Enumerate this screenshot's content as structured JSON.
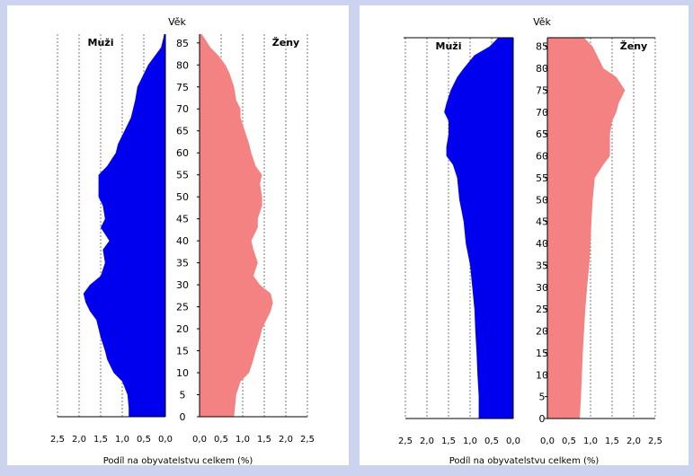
{
  "colors": {
    "men": "#0000ee",
    "women": "#f48282",
    "background": "#ccd3ee",
    "panel": "#ffffff"
  },
  "chart_data": [
    {
      "type": "population-pyramid",
      "age_label": "Věk",
      "xlabel": "Podíl na obyvatelstvu celkem (%)",
      "age_ticks": [
        0,
        5,
        10,
        15,
        20,
        25,
        30,
        35,
        40,
        45,
        50,
        55,
        60,
        65,
        70,
        75,
        80,
        85
      ],
      "x_ticks_left": [
        "2,5",
        "2,0",
        "1,5",
        "1,0",
        "0,5",
        "0,0"
      ],
      "x_ticks_right": [
        "0,0",
        "0,5",
        "1,0",
        "1,5",
        "2,0",
        "2,5"
      ],
      "xlim": [
        0,
        2.5
      ],
      "ylim": [
        0,
        87
      ],
      "grid": true,
      "series": [
        {
          "name": "Muži",
          "ages": [
            0,
            2,
            5,
            8,
            10,
            13,
            15,
            18,
            20,
            22,
            24,
            26,
            28,
            30,
            32,
            35,
            38,
            40,
            43,
            45,
            48,
            50,
            53,
            55,
            57,
            60,
            62,
            65,
            68,
            70,
            72,
            75,
            78,
            80,
            82,
            84,
            86,
            87
          ],
          "values": [
            0.85,
            0.85,
            0.88,
            1.0,
            1.2,
            1.35,
            1.4,
            1.5,
            1.55,
            1.6,
            1.75,
            1.85,
            1.9,
            1.75,
            1.5,
            1.4,
            1.45,
            1.3,
            1.5,
            1.4,
            1.45,
            1.55,
            1.55,
            1.55,
            1.35,
            1.15,
            1.1,
            0.95,
            0.8,
            0.75,
            0.7,
            0.65,
            0.5,
            0.4,
            0.25,
            0.1,
            0.05,
            0.03
          ]
        },
        {
          "name": "Ženy",
          "ages": [
            0,
            2,
            5,
            8,
            10,
            13,
            15,
            18,
            20,
            22,
            24,
            26,
            28,
            30,
            32,
            35,
            38,
            40,
            43,
            45,
            48,
            50,
            53,
            55,
            57,
            60,
            62,
            65,
            68,
            70,
            72,
            75,
            78,
            80,
            82,
            84,
            86,
            87
          ],
          "values": [
            0.8,
            0.82,
            0.85,
            0.95,
            1.15,
            1.25,
            1.3,
            1.4,
            1.45,
            1.55,
            1.65,
            1.7,
            1.65,
            1.4,
            1.25,
            1.35,
            1.25,
            1.2,
            1.35,
            1.35,
            1.45,
            1.45,
            1.4,
            1.45,
            1.3,
            1.2,
            1.15,
            1.05,
            0.95,
            0.95,
            0.85,
            0.8,
            0.7,
            0.6,
            0.45,
            0.25,
            0.12,
            0.05
          ]
        }
      ]
    },
    {
      "type": "population-pyramid",
      "age_label": "Věk",
      "xlabel": "Podíl na obyvatelstvu celkem (%)",
      "age_ticks": [
        0,
        5,
        10,
        15,
        20,
        25,
        30,
        35,
        40,
        45,
        50,
        55,
        60,
        65,
        70,
        75,
        80,
        85
      ],
      "x_ticks_left": [
        "2,5",
        "2,0",
        "1,5",
        "1,0",
        "0,5",
        "0,0"
      ],
      "x_ticks_right": [
        "0,0",
        "0,5",
        "1,0",
        "1,5",
        "2,0",
        "2,5"
      ],
      "xlim": [
        0,
        2.5
      ],
      "ylim": [
        0,
        87
      ],
      "grid": true,
      "series": [
        {
          "name": "Muži",
          "ages": [
            0,
            5,
            10,
            15,
            20,
            25,
            30,
            35,
            40,
            45,
            50,
            55,
            58,
            60,
            62,
            65,
            68,
            70,
            72,
            75,
            78,
            80,
            83,
            85,
            87
          ],
          "values": [
            0.8,
            0.8,
            0.83,
            0.85,
            0.88,
            0.9,
            0.95,
            1.0,
            1.1,
            1.15,
            1.25,
            1.3,
            1.4,
            1.55,
            1.55,
            1.5,
            1.5,
            1.6,
            1.55,
            1.45,
            1.3,
            1.15,
            0.9,
            0.55,
            0.35
          ]
        },
        {
          "name": "Ženy",
          "ages": [
            0,
            5,
            10,
            15,
            20,
            25,
            30,
            35,
            40,
            45,
            50,
            55,
            58,
            60,
            62,
            65,
            68,
            70,
            72,
            75,
            78,
            80,
            83,
            85,
            87
          ],
          "values": [
            0.75,
            0.78,
            0.8,
            0.82,
            0.85,
            0.88,
            0.92,
            0.97,
            1.0,
            1.02,
            1.05,
            1.1,
            1.3,
            1.45,
            1.45,
            1.45,
            1.5,
            1.6,
            1.65,
            1.8,
            1.6,
            1.3,
            1.15,
            1.05,
            0.85
          ]
        }
      ]
    }
  ]
}
